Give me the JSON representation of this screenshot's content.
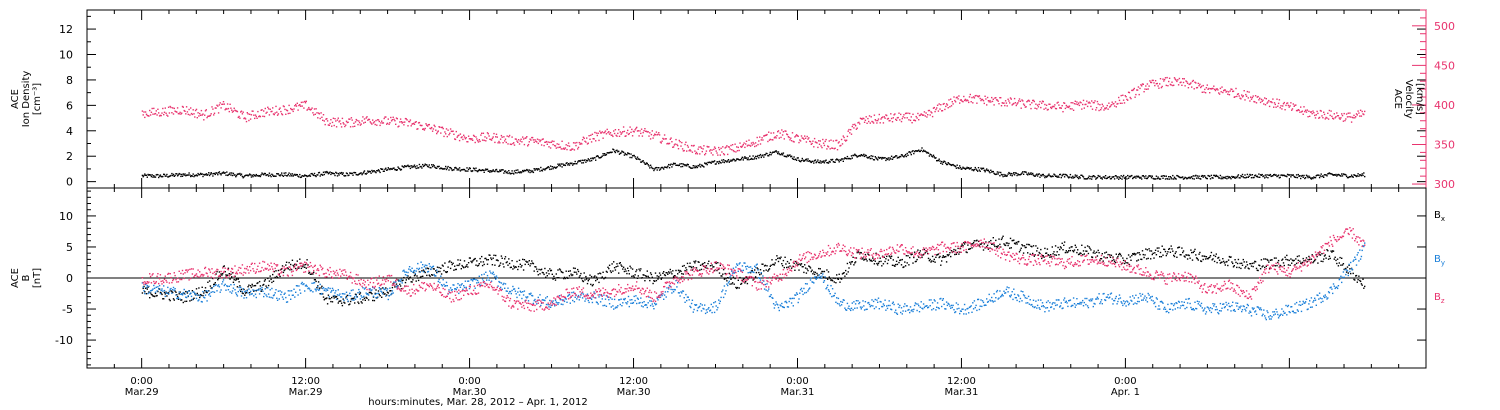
{
  "chart_data": [
    {
      "type": "scatter",
      "panel": "top",
      "ylabel_left": [
        "ACE",
        "Ion Density",
        "[cm⁻³]"
      ],
      "ylabel_right": [
        "ACE",
        "Velocity",
        "[km/s]"
      ],
      "y_left_range": [
        -0.5,
        13.5
      ],
      "y_left_ticks": [
        0,
        2,
        4,
        6,
        8,
        10,
        12
      ],
      "y_right_range": [
        295,
        520
      ],
      "y_right_ticks": [
        300,
        350,
        400,
        450,
        500
      ],
      "colors": {
        "density": "#000000",
        "velocity": "#e8336e"
      },
      "series": [
        {
          "name": "density",
          "axis": "left",
          "x_hours": [
            0,
            1.5,
            3,
            4.5,
            6,
            7.5,
            9,
            10.5,
            12,
            13.5,
            15,
            16.5,
            18,
            19.5,
            21,
            22.5,
            24,
            25.5,
            27,
            28.5,
            30,
            31.5,
            33,
            34.5,
            36,
            37.5,
            39,
            40.5,
            42,
            43.5,
            45,
            46.5,
            48,
            49.5,
            51,
            52.5,
            54,
            55.5,
            57,
            58.5,
            60,
            61.5,
            63,
            64.5,
            66,
            67.5,
            69,
            70.5,
            72,
            73.5,
            75,
            76.5,
            78,
            79.5,
            81,
            82.5,
            84,
            85.5,
            87,
            88.5,
            89.5
          ],
          "y": [
            0.5,
            0.5,
            0.6,
            0.6,
            0.7,
            0.5,
            0.6,
            0.6,
            0.5,
            0.7,
            0.6,
            0.8,
            1.0,
            1.2,
            1.3,
            1.1,
            1.0,
            0.9,
            0.8,
            0.9,
            1.2,
            1.5,
            1.8,
            2.5,
            2.0,
            1.0,
            1.4,
            1.2,
            1.6,
            1.8,
            2.0,
            2.4,
            1.8,
            1.6,
            1.7,
            2.2,
            1.8,
            2.0,
            2.6,
            1.6,
            1.1,
            1.0,
            0.6,
            0.7,
            0.5,
            0.5,
            0.4,
            0.4,
            0.4,
            0.4,
            0.4,
            0.4,
            0.4,
            0.4,
            0.5,
            0.5,
            0.5,
            0.4,
            0.6,
            0.5,
            0.6
          ]
        },
        {
          "name": "velocity",
          "axis": "right",
          "x_hours": [
            0,
            1.5,
            3,
            4.5,
            6,
            7.5,
            9,
            10.5,
            12,
            13.5,
            15,
            16.5,
            18,
            19.5,
            21,
            22.5,
            24,
            25.5,
            27,
            28.5,
            30,
            31.5,
            33,
            34.5,
            36,
            37.5,
            39,
            40.5,
            42,
            43.5,
            45,
            46.5,
            48,
            49.5,
            51,
            52.5,
            54,
            55.5,
            57,
            58.5,
            60,
            61.5,
            63,
            64.5,
            66,
            67.5,
            69,
            70.5,
            72,
            73.5,
            75,
            76.5,
            78,
            79.5,
            81,
            82.5,
            84,
            85.5,
            87,
            88.5,
            89.5
          ],
          "y": [
            390,
            392,
            395,
            388,
            400,
            385,
            392,
            395,
            400,
            380,
            378,
            382,
            380,
            378,
            372,
            365,
            358,
            360,
            356,
            355,
            352,
            348,
            360,
            366,
            368,
            362,
            352,
            344,
            342,
            346,
            355,
            365,
            358,
            352,
            350,
            380,
            383,
            385,
            384,
            398,
            410,
            407,
            405,
            402,
            400,
            398,
            402,
            398,
            410,
            425,
            430,
            428,
            420,
            418,
            412,
            405,
            398,
            390,
            388,
            385,
            390
          ]
        }
      ]
    },
    {
      "type": "scatter",
      "panel": "bottom",
      "ylabel_left": [
        "ACE",
        "B",
        "[nT]"
      ],
      "y_left_range": [
        -14.5,
        14.5
      ],
      "y_left_ticks": [
        -10,
        -5,
        0,
        5,
        10
      ],
      "colors": {
        "Bx": "#000000",
        "By": "#1a7fd9",
        "Bz": "#e8336e"
      },
      "series": [
        {
          "name": "Bx",
          "label_main": "B",
          "label_sub": "x",
          "x_hours": [
            0,
            1.5,
            3,
            4.5,
            6,
            7.5,
            9,
            10.5,
            12,
            13.5,
            15,
            16.5,
            18,
            19.5,
            21,
            22.5,
            24,
            25.5,
            27,
            28.5,
            30,
            31.5,
            33,
            34.5,
            36,
            37.5,
            39,
            40.5,
            42,
            43.5,
            45,
            46.5,
            48,
            49.5,
            51,
            52.5,
            54,
            55.5,
            57,
            58.5,
            60,
            61.5,
            63,
            64.5,
            66,
            67.5,
            69,
            70.5,
            72,
            73.5,
            75,
            76.5,
            78,
            79.5,
            81,
            82.5,
            84,
            85.5,
            87,
            88.5,
            89.5
          ],
          "y": [
            -2,
            -2.5,
            -3,
            -2,
            1.5,
            -2,
            -1,
            2,
            2.5,
            -3.5,
            -3.5,
            -3,
            -2,
            0,
            1,
            2,
            2.5,
            3,
            2.5,
            2,
            0.5,
            1,
            -0.5,
            2,
            1,
            0,
            1,
            2,
            2,
            -1,
            1,
            3,
            2,
            1,
            0,
            4,
            3,
            2.5,
            4,
            3,
            5,
            5.5,
            6,
            5,
            4,
            5,
            4.5,
            3.5,
            3,
            4,
            4.5,
            4,
            3.5,
            3,
            2,
            2.5,
            3,
            3,
            4,
            1,
            -1
          ]
        },
        {
          "name": "By",
          "label_main": "B",
          "label_sub": "y",
          "x_hours": [
            0,
            1.5,
            3,
            4.5,
            6,
            7.5,
            9,
            10.5,
            12,
            13.5,
            15,
            16.5,
            18,
            19.5,
            21,
            22.5,
            24,
            25.5,
            27,
            28.5,
            30,
            31.5,
            33,
            34.5,
            36,
            37.5,
            39,
            40.5,
            42,
            43.5,
            45,
            46.5,
            48,
            49.5,
            51,
            52.5,
            54,
            55.5,
            57,
            58.5,
            60,
            61.5,
            63,
            64.5,
            66,
            67.5,
            69,
            70.5,
            72,
            73.5,
            75,
            76.5,
            78,
            79.5,
            81,
            82.5,
            84,
            85.5,
            87,
            88.5,
            89.5
          ],
          "y": [
            -1.5,
            -2,
            -2.5,
            -3,
            -1,
            -2.5,
            -2,
            -3,
            -1,
            -2,
            -3,
            -2,
            -2.5,
            1.5,
            2,
            -2,
            -1,
            0.5,
            -2,
            -3,
            -4,
            -3,
            -3,
            -4,
            -3.5,
            -4,
            -1,
            -5,
            -4.5,
            2,
            1.5,
            -5,
            -3,
            1,
            -4,
            -4.5,
            -4,
            -5,
            -4.5,
            -4,
            -5,
            -4,
            -2,
            -3,
            -4.5,
            -4,
            -4,
            -3,
            -3.5,
            -3,
            -5,
            -4,
            -5,
            -4.5,
            -5,
            -6,
            -5,
            -4,
            -2,
            2,
            5
          ]
        },
        {
          "name": "Bz",
          "label_main": "B",
          "label_sub": "z",
          "x_hours": [
            0,
            1.5,
            3,
            4.5,
            6,
            7.5,
            9,
            10.5,
            12,
            13.5,
            15,
            16.5,
            18,
            19.5,
            21,
            22.5,
            24,
            25.5,
            27,
            28.5,
            30,
            31.5,
            33,
            34.5,
            36,
            37.5,
            39,
            40.5,
            42,
            43.5,
            45,
            46.5,
            48,
            49.5,
            51,
            52.5,
            54,
            55.5,
            57,
            58.5,
            60,
            61.5,
            63,
            64.5,
            66,
            67.5,
            69,
            70.5,
            72,
            73.5,
            75,
            76.5,
            78,
            79.5,
            81,
            82.5,
            84,
            85.5,
            87,
            88.5,
            89.5
          ],
          "y": [
            0,
            0,
            0.5,
            1,
            1,
            1.5,
            2,
            1,
            2,
            1,
            0.5,
            -1,
            0,
            -2,
            -1,
            -3,
            -2,
            -1,
            -4,
            -4.5,
            -4,
            -2,
            -2.5,
            -2,
            -1,
            -3,
            0,
            1,
            2,
            1,
            -1,
            0,
            3,
            4,
            5,
            4,
            4,
            5,
            4,
            5,
            5,
            6,
            4,
            3,
            3,
            2.5,
            3,
            3,
            2,
            1,
            0,
            0.5,
            -2,
            -1,
            -3,
            2,
            1,
            3,
            6,
            7.5,
            5
          ]
        }
      ]
    }
  ],
  "x_axis": {
    "range_hours": [
      -4,
      94
    ],
    "ticks": [
      {
        "hour": 0,
        "time": "0:00",
        "date": "Mar.29"
      },
      {
        "hour": 12,
        "time": "12:00",
        "date": "Mar.29"
      },
      {
        "hour": 24,
        "time": "0:00",
        "date": "Mar.30"
      },
      {
        "hour": 36,
        "time": "12:00",
        "date": "Mar.30"
      },
      {
        "hour": 48,
        "time": "0:00",
        "date": "Mar.31"
      },
      {
        "hour": 60,
        "time": "12:00",
        "date": "Mar.31"
      },
      {
        "hour": 72,
        "time": "0:00",
        "date": "Apr. 1"
      }
    ],
    "label": "hours:minutes, Mar. 28, 2012 – Apr.  1, 2012"
  }
}
